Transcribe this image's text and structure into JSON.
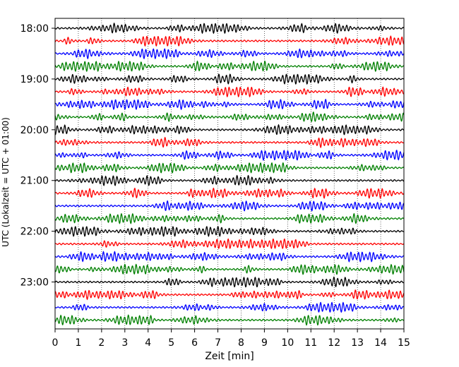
{
  "chart_data": {
    "type": "line",
    "title": "",
    "xlabel": "Zeit  [min]",
    "ylabel": "UTC (Lokalzeit = UTC + 01:00)",
    "xlim": [
      0,
      15
    ],
    "x_ticks": [
      "0",
      "1",
      "2",
      "3",
      "4",
      "5",
      "6",
      "7",
      "8",
      "9",
      "10",
      "11",
      "12",
      "13",
      "14",
      "15"
    ],
    "y_ticks": [
      "18:00",
      "19:00",
      "20:00",
      "21:00",
      "22:00",
      "23:00"
    ],
    "grid": "vertical dotted",
    "trace_interval_min": 15,
    "trace_colors": [
      "#000000",
      "#ff0000",
      "#0000ff",
      "#008000"
    ],
    "traces": [
      {
        "start": "18:00",
        "color": "#000000"
      },
      {
        "start": "18:15",
        "color": "#ff0000"
      },
      {
        "start": "18:30",
        "color": "#0000ff"
      },
      {
        "start": "18:45",
        "color": "#008000"
      },
      {
        "start": "19:00",
        "color": "#000000"
      },
      {
        "start": "19:15",
        "color": "#ff0000"
      },
      {
        "start": "19:30",
        "color": "#0000ff"
      },
      {
        "start": "19:45",
        "color": "#008000"
      },
      {
        "start": "20:00",
        "color": "#000000"
      },
      {
        "start": "20:15",
        "color": "#ff0000"
      },
      {
        "start": "20:30",
        "color": "#0000ff"
      },
      {
        "start": "20:45",
        "color": "#008000"
      },
      {
        "start": "21:00",
        "color": "#000000"
      },
      {
        "start": "21:15",
        "color": "#ff0000"
      },
      {
        "start": "21:30",
        "color": "#0000ff"
      },
      {
        "start": "21:45",
        "color": "#008000"
      },
      {
        "start": "22:00",
        "color": "#000000"
      },
      {
        "start": "22:15",
        "color": "#ff0000"
      },
      {
        "start": "22:30",
        "color": "#0000ff"
      },
      {
        "start": "22:45",
        "color": "#008000"
      },
      {
        "start": "23:00",
        "color": "#000000"
      },
      {
        "start": "23:15",
        "color": "#ff0000"
      },
      {
        "start": "23:30",
        "color": "#0000ff"
      },
      {
        "start": "23:45",
        "color": "#008000"
      }
    ]
  }
}
